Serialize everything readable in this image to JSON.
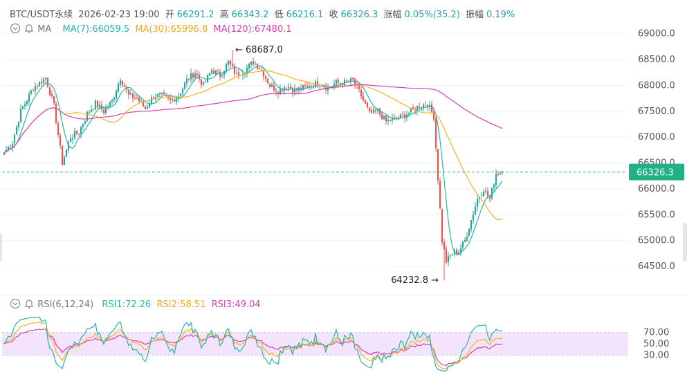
{
  "header": {
    "symbol": "BTC/USDT永续",
    "datetime": "2026-02-23 19:00",
    "open_label": "开",
    "open": "66291.2",
    "high_label": "高",
    "high": "66343.2",
    "low_label": "低",
    "low": "66216.1",
    "close_label": "收",
    "close": "66326.3",
    "change_label": "涨幅",
    "change": "0.05%(35.2)",
    "amplitude_label": "振幅",
    "amplitude": "0.19%"
  },
  "ma_legend": {
    "label": "MA",
    "ma7": "MA(7):66059.5",
    "ma30": "MA(30):65996.8",
    "ma120": "MA(120):67480.1"
  },
  "rsi_legend": {
    "label": "RSI(6,12,24)",
    "rsi1": "RSI1:72.26",
    "rsi2": "RSI2:58.51",
    "rsi3": "RSI3:49.04"
  },
  "colors": {
    "up": "#26a69a",
    "down": "#ef5350",
    "ma7": "#26b5a8",
    "ma30": "#f5b324",
    "ma120": "#d63fb3",
    "rsi1": "#26b5a8",
    "rsi2": "#f5b324",
    "rsi3": "#d63fb3",
    "price_tag": "#21b184",
    "rsi_band": "#f3e3fb"
  },
  "chart_data": [
    {
      "type": "candlestick",
      "price_axis": [
        "69000.0",
        "68500.0",
        "68000.0",
        "67500.0",
        "67000.0",
        "66500.0",
        "66000.0",
        "65500.0",
        "65000.0",
        "64500.0"
      ],
      "ylim": [
        64100,
        69250
      ],
      "last_price": 66326.3,
      "last_price_label": "66326.3",
      "high_annotation": {
        "value": 68687.0,
        "label": "68687.0",
        "candle_index": 110
      },
      "low_annotation": {
        "value": 64232.8,
        "label": "64232.8",
        "candle_index": 212
      },
      "anchors": [
        [
          0,
          66700
        ],
        [
          4,
          66900
        ],
        [
          8,
          67500
        ],
        [
          14,
          67950
        ],
        [
          20,
          68150
        ],
        [
          24,
          67600
        ],
        [
          28,
          66500
        ],
        [
          32,
          67000
        ],
        [
          36,
          67100
        ],
        [
          40,
          67450
        ],
        [
          44,
          67650
        ],
        [
          48,
          67500
        ],
        [
          52,
          67700
        ],
        [
          56,
          68150
        ],
        [
          60,
          67800
        ],
        [
          64,
          67750
        ],
        [
          68,
          67550
        ],
        [
          72,
          67800
        ],
        [
          76,
          67800
        ],
        [
          80,
          67700
        ],
        [
          84,
          67800
        ],
        [
          88,
          68100
        ],
        [
          92,
          68250
        ],
        [
          96,
          68000
        ],
        [
          100,
          68300
        ],
        [
          104,
          68200
        ],
        [
          108,
          68450
        ],
        [
          112,
          68200
        ],
        [
          116,
          68300
        ],
        [
          120,
          68450
        ],
        [
          124,
          68300
        ],
        [
          128,
          68000
        ],
        [
          132,
          67900
        ],
        [
          136,
          68000
        ],
        [
          140,
          67900
        ],
        [
          144,
          67950
        ],
        [
          148,
          68000
        ],
        [
          152,
          68050
        ],
        [
          156,
          67950
        ],
        [
          160,
          68050
        ],
        [
          164,
          68050
        ],
        [
          168,
          68100
        ],
        [
          172,
          67800
        ],
        [
          176,
          67450
        ],
        [
          180,
          67500
        ],
        [
          184,
          67300
        ],
        [
          188,
          67350
        ],
        [
          192,
          67400
        ],
        [
          196,
          67500
        ],
        [
          200,
          67600
        ],
        [
          204,
          67650
        ],
        [
          207,
          67400
        ],
        [
          209,
          66200
        ],
        [
          211,
          65000
        ],
        [
          213,
          64600
        ],
        [
          216,
          64750
        ],
        [
          219,
          64800
        ],
        [
          222,
          65000
        ],
        [
          225,
          65400
        ],
        [
          228,
          65800
        ],
        [
          231,
          66000
        ],
        [
          234,
          65800
        ],
        [
          237,
          66300
        ],
        [
          240,
          66326.3
        ]
      ],
      "moving_averages": [
        {
          "name": "MA(7)",
          "period": 7
        },
        {
          "name": "MA(30)",
          "period": 30
        },
        {
          "name": "MA(120)",
          "period": 120
        }
      ]
    },
    {
      "type": "line",
      "indicator": "RSI(6,12,24)",
      "y_axis": [
        "70.00",
        "50.00",
        "30.00"
      ],
      "ylim": [
        0,
        100
      ],
      "band": [
        30,
        70
      ],
      "latest": {
        "RSI1": 72.26,
        "RSI2": 58.51,
        "RSI3": 49.04
      }
    }
  ]
}
